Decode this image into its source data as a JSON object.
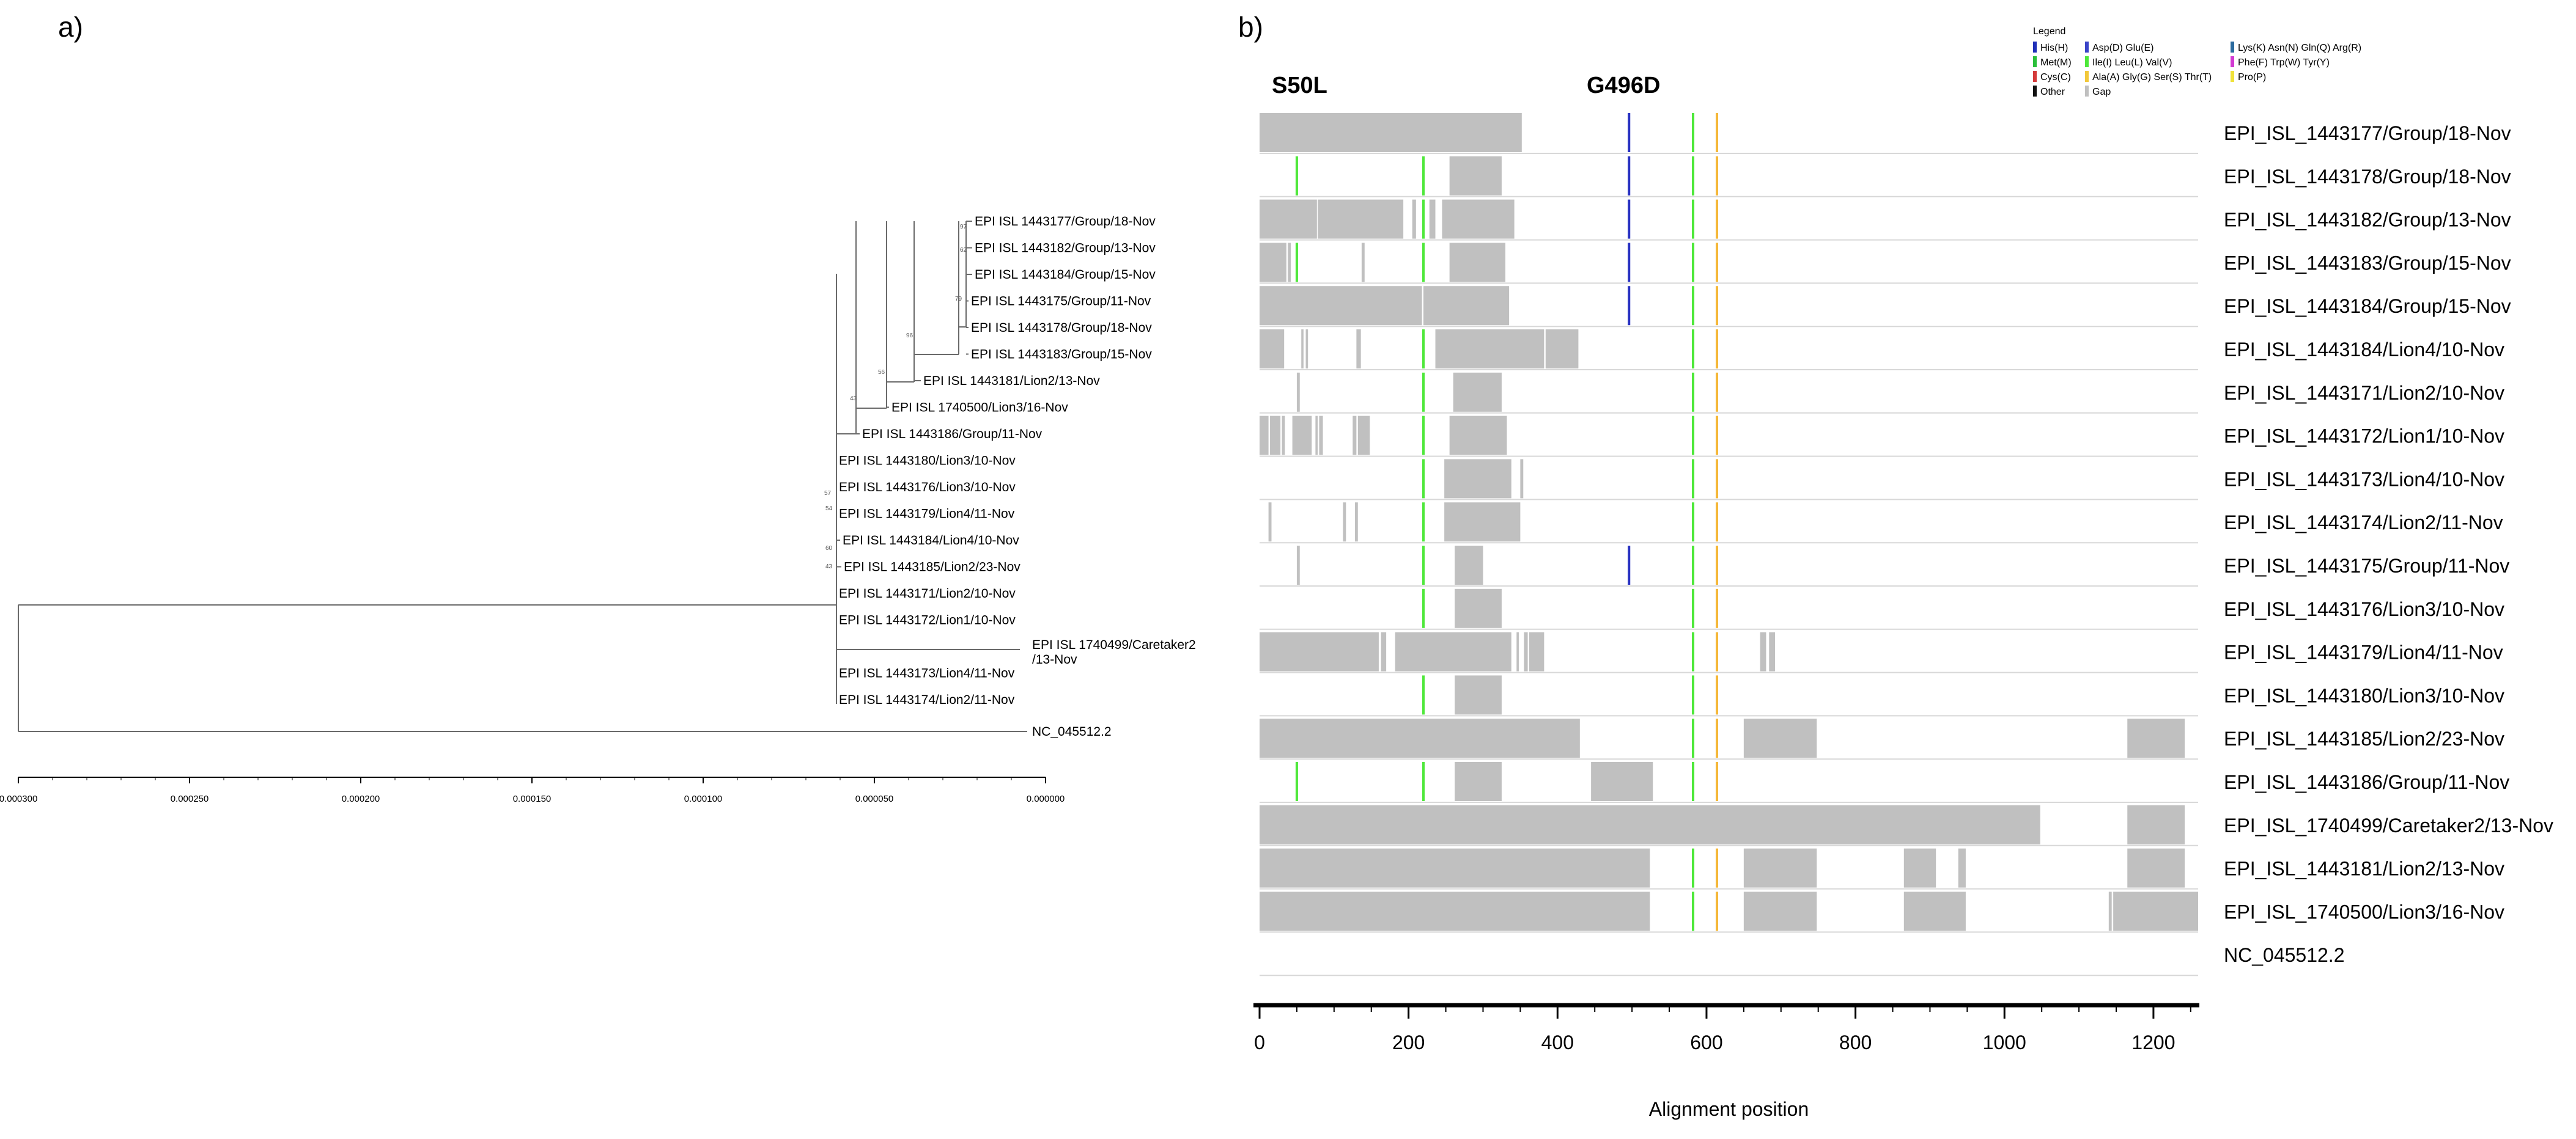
{
  "panels": {
    "a_label": "a)",
    "b_label": "b)"
  },
  "chart_data": [
    {
      "type": "phylogenetic_tree",
      "panel": "a)",
      "xlim": [
        0.0003,
        0.0
      ],
      "x_ticks": [
        "0.000300",
        "0.000250",
        "0.000200",
        "0.000150",
        "0.000100",
        "0.000050",
        "0.000000"
      ],
      "x_tick_values": [
        0.0003,
        0.00025,
        0.0002,
        0.00015,
        0.0001,
        5e-05,
        0.0
      ],
      "taxa": [
        {
          "label": "EPI ISL 1443177/Group/18-Nov",
          "dist": 0.0,
          "order": 0
        },
        {
          "label": "EPI ISL 1443182/Group/13-Nov",
          "dist": 0.0,
          "order": 1
        },
        {
          "label": "EPI ISL 1443184/Group/15-Nov",
          "dist": 0.0,
          "order": 2
        },
        {
          "label": "EPI ISL 1443175/Group/11-Nov",
          "dist": 0.0,
          "order": 3
        },
        {
          "label": "EPI ISL 1443178/Group/18-Nov",
          "dist": 0.0,
          "order": 4
        },
        {
          "label": "EPI ISL 1443183/Group/15-Nov",
          "dist": 0.0,
          "order": 5
        },
        {
          "label": "EPI ISL 1443181/Lion2/13-Nov",
          "dist": 0.0,
          "order": 6
        },
        {
          "label": "EPI ISL 1740500/Lion3/16-Nov",
          "dist": 0.0,
          "order": 7
        },
        {
          "label": "EPI ISL 1443186/Group/11-Nov",
          "dist": 0.0,
          "order": 8
        },
        {
          "label": "EPI ISL 1443180/Lion3/10-Nov",
          "dist": 0.0,
          "order": 9
        },
        {
          "label": "EPI ISL 1443176/Lion3/10-Nov",
          "dist": 0.0,
          "order": 10
        },
        {
          "label": "EPI ISL 1443179/Lion4/11-Nov",
          "dist": 0.0,
          "order": 11
        },
        {
          "label": "EPI ISL 1443184/Lion4/10-Nov",
          "dist": 0.0,
          "order": 12
        },
        {
          "label": "EPI ISL 1443185/Lion2/23-Nov",
          "dist": 0.0,
          "order": 13
        },
        {
          "label": "EPI ISL 1443171/Lion2/10-Nov",
          "dist": 0.0,
          "order": 14
        },
        {
          "label": "EPI ISL 1443172/Lion1/10-Nov",
          "dist": 0.0,
          "order": 15
        },
        {
          "label": "EPI ISL 1740499/Caretaker2\n/13-Nov",
          "dist": 0.0,
          "order": 16
        },
        {
          "label": "EPI ISL 1443173/Lion4/11-Nov",
          "dist": 0.0,
          "order": 17
        },
        {
          "label": "EPI ISL 1443174/Lion2/11-Nov",
          "dist": 0.0,
          "order": 18
        },
        {
          "label": "NC_045512.2",
          "dist": 0.0,
          "order": 19
        }
      ],
      "bootstrap_labels": [
        "97",
        "62",
        "79",
        "96",
        "56",
        "43",
        "57",
        "54",
        "60",
        "43"
      ]
    },
    {
      "type": "alignment_overview",
      "panel": "b)",
      "xlabel": "Alignment position",
      "xlim": [
        0,
        1260
      ],
      "x_ticks": [
        0,
        200,
        400,
        600,
        800,
        1000,
        1200
      ],
      "annotations": [
        {
          "text": "S50L",
          "position": 50
        },
        {
          "text": "G496D",
          "position": 496
        }
      ],
      "legend": {
        "title": "Legend",
        "items": [
          {
            "label": "His(H)",
            "color": "#1f2fb8"
          },
          {
            "label": "Met(M)",
            "color": "#2bbf3a"
          },
          {
            "label": "Cys(C)",
            "color": "#d43a3a"
          },
          {
            "label": "Other",
            "color": "#111111"
          },
          {
            "label": "Asp(D) Glu(E)",
            "color": "#3a44c8"
          },
          {
            "label": "Ile(I) Leu(L) Val(V)",
            "color": "#4ee83a"
          },
          {
            "label": "Ala(A) Gly(G) Ser(S) Thr(T)",
            "color": "#f2c83a"
          },
          {
            "label": "Gap",
            "color": "#c0c0c0"
          },
          {
            "label": "Lys(K) Asn(N) Gln(Q) Arg(R)",
            "color": "#2a6a9e"
          },
          {
            "label": "Phe(F) Trp(W) Tyr(Y)",
            "color": "#d23ad2"
          },
          {
            "label": "Pro(P)",
            "color": "#f0e23a"
          }
        ]
      },
      "colors": {
        "gap": "#c0c0c0",
        "asp_glu": "#2a33c2",
        "ile_leu_val": "#4ee83a",
        "ala_gly_ser_thr": "#f5b83a",
        "row_line": "#d8d8d8",
        "axis": "#000000"
      },
      "sequences": [
        {
          "label": "EPI_ISL_1443177/Group/18-Nov",
          "gaps": [
            [
              0,
              352
            ]
          ],
          "marks": [
            {
              "pos": 496,
              "color": "#2a33c2"
            },
            {
              "pos": 582,
              "color": "#4ee83a"
            },
            {
              "pos": 614,
              "color": "#f5b83a"
            }
          ]
        },
        {
          "label": "EPI_ISL_1443178/Group/18-Nov",
          "gaps": [
            [
              255,
              325
            ]
          ],
          "marks": [
            {
              "pos": 50,
              "color": "#4ee83a"
            },
            {
              "pos": 220,
              "color": "#4ee83a"
            },
            {
              "pos": 496,
              "color": "#2a33c2"
            },
            {
              "pos": 582,
              "color": "#4ee83a"
            },
            {
              "pos": 614,
              "color": "#f5b83a"
            }
          ]
        },
        {
          "label": "EPI_ISL_1443182/Group/13-Nov",
          "gaps": [
            [
              0,
              77
            ],
            [
              78,
              193
            ],
            [
              205,
              210
            ],
            [
              228,
              236
            ],
            [
              245,
              342
            ]
          ],
          "marks": [
            {
              "pos": 220,
              "color": "#4ee83a"
            },
            {
              "pos": 496,
              "color": "#2a33c2"
            },
            {
              "pos": 582,
              "color": "#4ee83a"
            },
            {
              "pos": 614,
              "color": "#f5b83a"
            }
          ]
        },
        {
          "label": "EPI_ISL_1443183/Group/15-Nov",
          "gaps": [
            [
              0,
              36
            ],
            [
              38,
              42
            ],
            [
              137,
              141
            ],
            [
              255,
              330
            ]
          ],
          "marks": [
            {
              "pos": 50,
              "color": "#4ee83a"
            },
            {
              "pos": 220,
              "color": "#4ee83a"
            },
            {
              "pos": 496,
              "color": "#2a33c2"
            },
            {
              "pos": 582,
              "color": "#4ee83a"
            },
            {
              "pos": 614,
              "color": "#f5b83a"
            }
          ]
        },
        {
          "label": "EPI_ISL_1443184/Group/15-Nov",
          "gaps": [
            [
              0,
              218
            ],
            [
              220,
              335
            ]
          ],
          "marks": [
            {
              "pos": 496,
              "color": "#2a33c2"
            },
            {
              "pos": 582,
              "color": "#4ee83a"
            },
            {
              "pos": 614,
              "color": "#f5b83a"
            }
          ]
        },
        {
          "label": "EPI_ISL_1443184/Lion4/10-Nov",
          "gaps": [
            [
              0,
              33
            ],
            [
              56,
              59
            ],
            [
              62,
              65
            ],
            [
              130,
              136
            ],
            [
              236,
              382
            ],
            [
              384,
              428
            ]
          ],
          "marks": [
            {
              "pos": 220,
              "color": "#4ee83a"
            },
            {
              "pos": 582,
              "color": "#4ee83a"
            },
            {
              "pos": 614,
              "color": "#f5b83a"
            }
          ]
        },
        {
          "label": "EPI_ISL_1443171/Lion2/10-Nov",
          "gaps": [
            [
              50,
              54
            ],
            [
              260,
              325
            ]
          ],
          "marks": [
            {
              "pos": 220,
              "color": "#4ee83a"
            },
            {
              "pos": 582,
              "color": "#4ee83a"
            },
            {
              "pos": 614,
              "color": "#f5b83a"
            }
          ]
        },
        {
          "label": "EPI_ISL_1443172/Lion1/10-Nov",
          "gaps": [
            [
              0,
              12
            ],
            [
              14,
              28
            ],
            [
              30,
              34
            ],
            [
              44,
              70
            ],
            [
              75,
              78
            ],
            [
              80,
              85
            ],
            [
              125,
              130
            ],
            [
              132,
              148
            ],
            [
              255,
              332
            ]
          ],
          "marks": [
            {
              "pos": 220,
              "color": "#4ee83a"
            },
            {
              "pos": 582,
              "color": "#4ee83a"
            },
            {
              "pos": 614,
              "color": "#f5b83a"
            }
          ]
        },
        {
          "label": "EPI_ISL_1443173/Lion4/10-Nov",
          "gaps": [
            [
              248,
              338
            ],
            [
              350,
              354
            ]
          ],
          "marks": [
            {
              "pos": 220,
              "color": "#4ee83a"
            },
            {
              "pos": 582,
              "color": "#4ee83a"
            },
            {
              "pos": 614,
              "color": "#f5b83a"
            }
          ]
        },
        {
          "label": "EPI_ISL_1443174/Lion2/11-Nov",
          "gaps": [
            [
              12,
              16
            ],
            [
              112,
              116
            ],
            [
              128,
              132
            ],
            [
              248,
              350
            ]
          ],
          "marks": [
            {
              "pos": 220,
              "color": "#4ee83a"
            },
            {
              "pos": 582,
              "color": "#4ee83a"
            },
            {
              "pos": 614,
              "color": "#f5b83a"
            }
          ]
        },
        {
          "label": "EPI_ISL_1443175/Group/11-Nov",
          "gaps": [
            [
              50,
              54
            ],
            [
              262,
              300
            ]
          ],
          "marks": [
            {
              "pos": 220,
              "color": "#4ee83a"
            },
            {
              "pos": 496,
              "color": "#2a33c2"
            },
            {
              "pos": 582,
              "color": "#4ee83a"
            },
            {
              "pos": 614,
              "color": "#f5b83a"
            }
          ]
        },
        {
          "label": "EPI_ISL_1443176/Lion3/10-Nov",
          "gaps": [
            [
              262,
              325
            ]
          ],
          "marks": [
            {
              "pos": 220,
              "color": "#4ee83a"
            },
            {
              "pos": 582,
              "color": "#4ee83a"
            },
            {
              "pos": 614,
              "color": "#f5b83a"
            }
          ]
        },
        {
          "label": "EPI_ISL_1443179/Lion4/11-Nov",
          "gaps": [
            [
              0,
              160
            ],
            [
              163,
              170
            ],
            [
              182,
              338
            ],
            [
              345,
              348
            ],
            [
              355,
              360
            ],
            [
              362,
              382
            ],
            [
              672,
              680
            ],
            [
              684,
              692
            ]
          ],
          "marks": [
            {
              "pos": 582,
              "color": "#4ee83a"
            },
            {
              "pos": 614,
              "color": "#f5b83a"
            }
          ]
        },
        {
          "label": "EPI_ISL_1443180/Lion3/10-Nov",
          "gaps": [
            [
              262,
              325
            ]
          ],
          "marks": [
            {
              "pos": 220,
              "color": "#4ee83a"
            },
            {
              "pos": 582,
              "color": "#4ee83a"
            },
            {
              "pos": 614,
              "color": "#f5b83a"
            }
          ]
        },
        {
          "label": "EPI_ISL_1443185/Lion2/23-Nov",
          "gaps": [
            [
              0,
              430
            ],
            [
              650,
              748
            ],
            [
              1165,
              1242
            ]
          ],
          "marks": [
            {
              "pos": 582,
              "color": "#4ee83a"
            },
            {
              "pos": 614,
              "color": "#f5b83a"
            }
          ]
        },
        {
          "label": "EPI_ISL_1443186/Group/11-Nov",
          "gaps": [
            [
              262,
              325
            ],
            [
              445,
              528
            ]
          ],
          "marks": [
            {
              "pos": 50,
              "color": "#4ee83a"
            },
            {
              "pos": 220,
              "color": "#4ee83a"
            },
            {
              "pos": 582,
              "color": "#4ee83a"
            },
            {
              "pos": 614,
              "color": "#f5b83a"
            }
          ]
        },
        {
          "label": "EPI_ISL_1740499/Caretaker2/13-Nov",
          "gaps": [
            [
              0,
              1048
            ],
            [
              1165,
              1242
            ]
          ],
          "marks": []
        },
        {
          "label": "EPI_ISL_1443181/Lion2/13-Nov",
          "gaps": [
            [
              0,
              524
            ],
            [
              650,
              748
            ],
            [
              865,
              908
            ],
            [
              938,
              948
            ],
            [
              1165,
              1242
            ]
          ],
          "marks": [
            {
              "pos": 582,
              "color": "#4ee83a"
            },
            {
              "pos": 614,
              "color": "#f5b83a"
            }
          ]
        },
        {
          "label": "EPI_ISL_1740500/Lion3/16-Nov",
          "gaps": [
            [
              0,
              524
            ],
            [
              650,
              748
            ],
            [
              865,
              948
            ],
            [
              1140,
              1144
            ],
            [
              1146,
              1260
            ]
          ],
          "marks": [
            {
              "pos": 582,
              "color": "#4ee83a"
            },
            {
              "pos": 614,
              "color": "#f5b83a"
            }
          ]
        },
        {
          "label": "NC_045512.2",
          "gaps": [],
          "marks": []
        }
      ]
    }
  ]
}
